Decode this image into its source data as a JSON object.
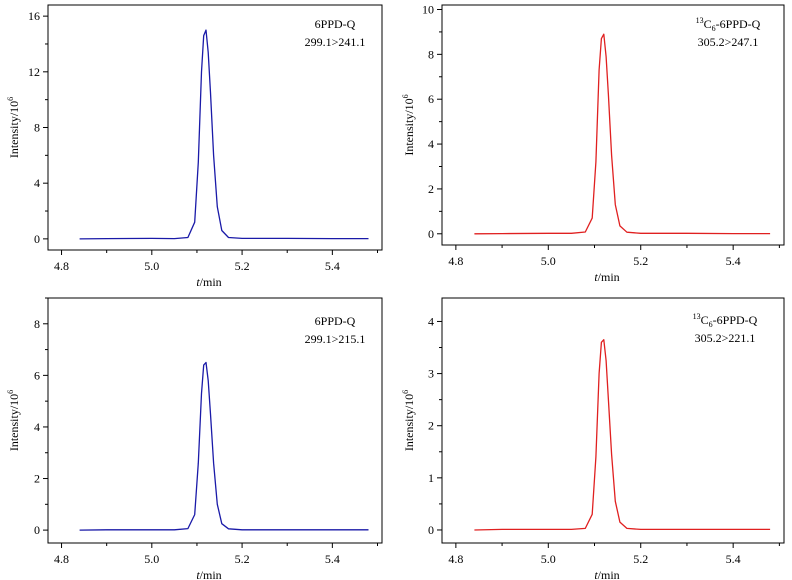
{
  "chart_data": [
    {
      "type": "line",
      "panel": "top-left",
      "annotation": {
        "compound": "6PPD-Q",
        "transition": "299.1>241.1"
      },
      "xlabel": {
        "var": "t",
        "unit": "/min"
      },
      "ylabel": {
        "base": "Intensity/10",
        "sup": "6"
      },
      "xlim": [
        4.77,
        5.51
      ],
      "ylim": [
        -0.8,
        16.8
      ],
      "xticks": [
        4.8,
        5.0,
        5.2,
        5.4
      ],
      "xtick_labels": [
        "4.8",
        "5.0",
        "5.2",
        "5.4"
      ],
      "yticks": [
        0,
        4,
        8,
        12,
        16
      ],
      "ytick_labels": [
        "0",
        "4",
        "8",
        "12",
        "16"
      ],
      "color": "#1a1aa8",
      "peak": {
        "t": 5.118,
        "height": 15.0
      },
      "series": [
        {
          "x": [
            4.84,
            4.9,
            5.0,
            5.05,
            5.08,
            5.095,
            5.103,
            5.11,
            5.115,
            5.12,
            5.125,
            5.13,
            5.137,
            5.145,
            5.155,
            5.17,
            5.2,
            5.3,
            5.4,
            5.48
          ],
          "y": [
            0.0,
            0.02,
            0.03,
            0.02,
            0.1,
            1.2,
            5.5,
            12.0,
            14.6,
            15.0,
            13.4,
            10.5,
            6.0,
            2.3,
            0.6,
            0.1,
            0.03,
            0.03,
            0.02,
            0.02
          ]
        }
      ]
    },
    {
      "type": "line",
      "panel": "top-right",
      "annotation": {
        "iso_sup": "13",
        "iso_el": "C",
        "iso_sub": "6",
        "compound": "-6PPD-Q",
        "transition": "305.2>247.1"
      },
      "xlabel": {
        "var": "t",
        "unit": "/min"
      },
      "ylabel": {
        "base": "Intensity/10",
        "sup": "6"
      },
      "xlim": [
        4.77,
        5.51
      ],
      "ylim": [
        -0.5,
        10.2
      ],
      "xticks": [
        4.8,
        5.0,
        5.2,
        5.4
      ],
      "xtick_labels": [
        "4.8",
        "5.0",
        "5.2",
        "5.4"
      ],
      "yticks": [
        0,
        2,
        4,
        6,
        8,
        10
      ],
      "ytick_labels": [
        "0",
        "2",
        "4",
        "6",
        "8",
        "10"
      ],
      "color": "#e02020",
      "peak": {
        "t": 5.117,
        "height": 8.9
      },
      "series": [
        {
          "x": [
            4.84,
            4.9,
            5.0,
            5.05,
            5.08,
            5.095,
            5.103,
            5.11,
            5.115,
            5.12,
            5.125,
            5.13,
            5.137,
            5.145,
            5.155,
            5.17,
            5.2,
            5.3,
            5.4,
            5.48
          ],
          "y": [
            0.0,
            0.01,
            0.02,
            0.02,
            0.08,
            0.7,
            3.2,
            7.3,
            8.7,
            8.9,
            7.9,
            6.2,
            3.5,
            1.3,
            0.35,
            0.07,
            0.02,
            0.02,
            0.01,
            0.01
          ]
        }
      ]
    },
    {
      "type": "line",
      "panel": "bottom-left",
      "annotation": {
        "compound": "6PPD-Q",
        "transition": "299.1>215.1"
      },
      "xlabel": {
        "var": "t",
        "unit": "/min"
      },
      "ylabel": {
        "base": "Intensity/10",
        "sup": "6"
      },
      "xlim": [
        4.77,
        5.51
      ],
      "ylim": [
        -0.5,
        9.0
      ],
      "xticks": [
        4.8,
        5.0,
        5.2,
        5.4
      ],
      "xtick_labels": [
        "4.8",
        "5.0",
        "5.2",
        "5.4"
      ],
      "yticks": [
        0,
        2,
        4,
        6,
        8
      ],
      "ytick_labels": [
        "0",
        "2",
        "4",
        "6",
        "8"
      ],
      "color": "#1a1aa8",
      "peak": {
        "t": 5.116,
        "height": 6.5
      },
      "series": [
        {
          "x": [
            4.84,
            4.9,
            5.0,
            5.05,
            5.08,
            5.095,
            5.103,
            5.11,
            5.115,
            5.12,
            5.125,
            5.13,
            5.137,
            5.145,
            5.155,
            5.17,
            5.2,
            5.3,
            5.4,
            5.48
          ],
          "y": [
            0.0,
            0.01,
            0.01,
            0.01,
            0.06,
            0.6,
            2.6,
            5.3,
            6.4,
            6.5,
            5.8,
            4.5,
            2.6,
            1.0,
            0.25,
            0.05,
            0.01,
            0.01,
            0.01,
            0.01
          ]
        }
      ]
    },
    {
      "type": "line",
      "panel": "bottom-right",
      "annotation": {
        "iso_sup": "13",
        "iso_el": "C",
        "iso_sub": "6",
        "compound": "-6PPD-Q",
        "transition": "305.2>221.1"
      },
      "xlabel": {
        "var": "t",
        "unit": "/min"
      },
      "ylabel": {
        "base": "Intensity/10",
        "sup": "6"
      },
      "xlim": [
        4.77,
        5.51
      ],
      "ylim": [
        -0.25,
        4.45
      ],
      "xticks": [
        4.8,
        5.0,
        5.2,
        5.4
      ],
      "xtick_labels": [
        "4.8",
        "5.0",
        "5.2",
        "5.4"
      ],
      "yticks": [
        0,
        1,
        2,
        3,
        4
      ],
      "ytick_labels": [
        "0",
        "1",
        "2",
        "3",
        "4"
      ],
      "color": "#e02020",
      "peak": {
        "t": 5.117,
        "height": 3.65
      },
      "series": [
        {
          "x": [
            4.84,
            4.9,
            5.0,
            5.05,
            5.08,
            5.095,
            5.103,
            5.11,
            5.115,
            5.12,
            5.125,
            5.13,
            5.137,
            5.145,
            5.155,
            5.17,
            5.2,
            5.3,
            5.4,
            5.48
          ],
          "y": [
            0.0,
            0.01,
            0.01,
            0.01,
            0.03,
            0.3,
            1.4,
            3.0,
            3.6,
            3.65,
            3.25,
            2.5,
            1.45,
            0.55,
            0.15,
            0.03,
            0.01,
            0.01,
            0.01,
            0.01
          ]
        }
      ]
    }
  ]
}
